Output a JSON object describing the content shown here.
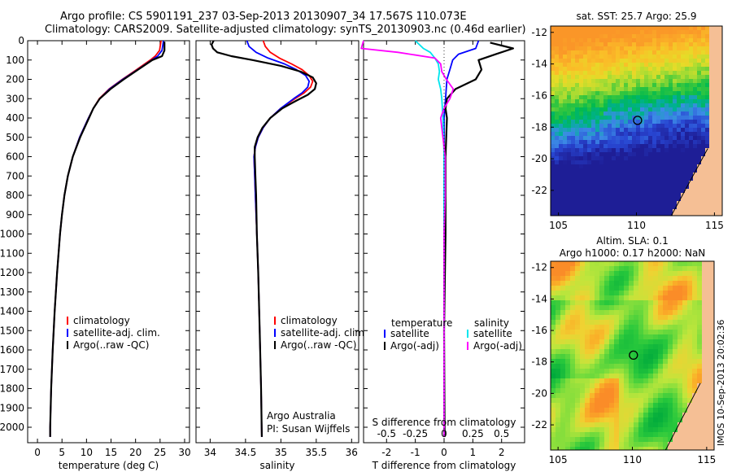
{
  "header": {
    "title_line1": "Argo profile: CS 5901191_237 03-Sep-2013 20130907_34 17.567S 110.073E",
    "title_line2": "Climatology: CARS2009. Satellite-adjusted climatology: synTS_20130903.nc (0.46d earlier)"
  },
  "stamp": "IMOS 10-Sep-2013 20:02:36",
  "chart_data": [
    {
      "id": "temperature",
      "type": "line",
      "xlabel": "temperature (deg C)",
      "ylabel": "",
      "xlim": [
        -2,
        31
      ],
      "ylim": [
        2080,
        0
      ],
      "xticks": [
        0,
        5,
        10,
        15,
        20,
        25,
        30
      ],
      "yticks": [
        0,
        100,
        200,
        300,
        400,
        500,
        600,
        700,
        800,
        900,
        1000,
        1100,
        1200,
        1300,
        1400,
        1500,
        1600,
        1700,
        1800,
        1900,
        2000
      ],
      "legend": [
        "climatology",
        "satellite-adj. clim.",
        "Argo(..raw -QC)"
      ],
      "series": [
        {
          "name": "climatology",
          "color": "#ff0000",
          "depth": [
            0,
            50,
            80,
            100,
            150,
            200,
            250,
            300,
            350,
            400,
            500,
            600,
            700,
            800,
            900,
            1000,
            1200,
            1400,
            1600,
            1800,
            2000,
            2050
          ],
          "values": [
            25.2,
            24.9,
            24.0,
            23.0,
            20.2,
            17.3,
            14.6,
            12.6,
            11.4,
            10.4,
            8.6,
            7.2,
            6.2,
            5.5,
            5.0,
            4.6,
            4.0,
            3.5,
            3.1,
            2.8,
            2.6,
            2.6
          ]
        },
        {
          "name": "satellite-adj. clim.",
          "color": "#0000ff",
          "depth": [
            0,
            50,
            80,
            100,
            150,
            200,
            250,
            300,
            350,
            400,
            500,
            600,
            700,
            800,
            900,
            1000,
            1200,
            1400,
            1600,
            1800,
            2000,
            2050
          ],
          "values": [
            25.7,
            25.4,
            24.5,
            23.3,
            20.4,
            17.4,
            14.7,
            12.7,
            11.4,
            10.4,
            8.6,
            7.2,
            6.2,
            5.5,
            5.0,
            4.6,
            4.0,
            3.5,
            3.1,
            2.8,
            2.6,
            2.6
          ]
        },
        {
          "name": "Argo(..raw -QC)",
          "color": "#000000",
          "depth": [
            5,
            50,
            80,
            100,
            150,
            200,
            250,
            300,
            350,
            400,
            500,
            600,
            700,
            800,
            900,
            1000,
            1200,
            1400,
            1600,
            1800,
            2000,
            2050
          ],
          "values": [
            25.9,
            25.9,
            25.4,
            23.4,
            20.5,
            17.6,
            14.9,
            12.7,
            11.4,
            10.5,
            8.7,
            7.2,
            6.2,
            5.5,
            5.0,
            4.6,
            4.0,
            3.5,
            3.1,
            2.8,
            2.6,
            2.6
          ]
        }
      ]
    },
    {
      "id": "salinity",
      "type": "line",
      "xlabel": "salinity",
      "xlim": [
        33.8,
        36.1
      ],
      "ylim": [
        2080,
        0
      ],
      "xticks": [
        34,
        34.5,
        35,
        35.5,
        36
      ],
      "legend": [
        "climatology",
        "satellite-adj. clim.",
        "Argo(..raw -QC)"
      ],
      "annotation": [
        "Argo Australia",
        "PI: Susan Wijffels"
      ],
      "series": [
        {
          "name": "climatology",
          "color": "#ff0000",
          "depth": [
            0,
            30,
            60,
            90,
            120,
            150,
            180,
            210,
            240,
            270,
            300,
            350,
            400,
            450,
            500,
            550,
            600,
            700,
            800,
            1000,
            1200,
            1500,
            1800,
            2050
          ],
          "values": [
            34.75,
            34.78,
            34.85,
            34.98,
            35.15,
            35.3,
            35.4,
            35.45,
            35.42,
            35.33,
            35.2,
            35.0,
            34.85,
            34.75,
            34.68,
            34.64,
            34.62,
            34.63,
            34.64,
            34.66,
            34.68,
            34.7,
            34.72,
            34.73
          ]
        },
        {
          "name": "satellite-adj. clim.",
          "color": "#0000ff",
          "depth": [
            0,
            30,
            60,
            90,
            120,
            150,
            180,
            210,
            240,
            270,
            300,
            350,
            400,
            450,
            500,
            550,
            600,
            700,
            800,
            1000,
            1200,
            1500,
            1800,
            2050
          ],
          "values": [
            34.52,
            34.55,
            34.65,
            34.82,
            35.05,
            35.22,
            35.35,
            35.4,
            35.38,
            35.3,
            35.18,
            35.0,
            34.85,
            34.75,
            34.68,
            34.64,
            34.62,
            34.63,
            34.64,
            34.66,
            34.68,
            34.7,
            34.72,
            34.73
          ]
        },
        {
          "name": "Argo(..raw -QC)",
          "color": "#000000",
          "depth": [
            0,
            20,
            40,
            60,
            80,
            100,
            130,
            160,
            190,
            220,
            250,
            280,
            310,
            350,
            400,
            450,
            500,
            550,
            600,
            700,
            800,
            1000,
            1200,
            1500,
            1800,
            2050
          ],
          "values": [
            34.05,
            34.02,
            34.04,
            34.1,
            34.3,
            34.6,
            35.0,
            35.28,
            35.45,
            35.5,
            35.48,
            35.38,
            35.22,
            35.02,
            34.85,
            34.74,
            34.67,
            34.63,
            34.63,
            34.64,
            34.65,
            34.66,
            34.68,
            34.7,
            34.72,
            34.73
          ]
        }
      ]
    },
    {
      "id": "differences",
      "type": "line",
      "xlabel": "T difference from climatology",
      "secondary_xlabel": "S difference from climatology",
      "xlim": [
        -2.8,
        2.8
      ],
      "ylim": [
        2080,
        0
      ],
      "xticks": [
        -2,
        -1,
        0,
        1,
        2
      ],
      "secondary_xticks": [
        -0.5,
        -0.25,
        0,
        0.25,
        0.5
      ],
      "legend_headers": [
        "temperature",
        "salinity"
      ],
      "legend": [
        "satellite",
        "Argo(-adj)",
        "satellite",
        "Argo(-adj)"
      ],
      "series": [
        {
          "name": "temperature satellite",
          "color": "#0000ff",
          "depth": [
            0,
            40,
            70,
            100,
            150,
            200,
            300,
            400,
            600,
            1000,
            1500,
            2050
          ],
          "values": [
            1.2,
            1.1,
            0.5,
            0.3,
            0.2,
            0.1,
            0.05,
            0.0,
            0.0,
            0.0,
            0.0,
            0.0
          ]
        },
        {
          "name": "temperature Argo(-adj)",
          "color": "#000000",
          "depth": [
            10,
            40,
            70,
            100,
            150,
            200,
            250,
            300,
            350,
            400,
            600,
            1000,
            1500,
            2050
          ],
          "values": [
            1.6,
            2.4,
            1.8,
            1.2,
            1.3,
            1.1,
            0.4,
            0.1,
            0.05,
            0.1,
            0.05,
            0.05,
            0.0,
            0.02
          ]
        },
        {
          "name": "salinity satellite",
          "color": "#00e5ee",
          "depth": [
            0,
            40,
            60,
            90,
            120,
            160,
            200,
            250,
            300,
            400,
            600,
            1000,
            1500,
            2050
          ],
          "values": [
            -0.25,
            -0.18,
            -0.12,
            -0.08,
            -0.05,
            -0.04,
            -0.05,
            -0.03,
            -0.02,
            -0.01,
            0.0,
            0.0,
            0.0,
            0.0
          ]
        },
        {
          "name": "salinity Argo(-adj)",
          "color": "#ff00ff",
          "depth": [
            0,
            40,
            60,
            90,
            120,
            160,
            200,
            250,
            300,
            350,
            400,
            600,
            800,
            1000,
            1500,
            2050
          ],
          "values": [
            -0.7,
            -0.72,
            -0.4,
            -0.08,
            -0.03,
            -0.02,
            0.02,
            0.08,
            0.05,
            0.0,
            -0.03,
            0.01,
            0.01,
            0.0,
            0.0,
            0.0
          ]
        }
      ]
    },
    {
      "id": "sst_map",
      "type": "heatmap",
      "title": "sat. SST: 25.7  Argo: 25.9",
      "xlim": [
        104.5,
        115.5
      ],
      "ylim": [
        -23.6,
        -11.6
      ],
      "xticks": [
        105,
        110,
        115
      ],
      "yticks": [
        -12,
        -14,
        -16,
        -18,
        -20,
        -22
      ],
      "marker": {
        "lon": 110.073,
        "lat": -17.567
      }
    },
    {
      "id": "sla_map",
      "type": "heatmap",
      "title": "Altim. SLA: 0.1",
      "subtitle": "Argo h1000: 0.17  h2000: NaN",
      "xlim": [
        104.5,
        115.5
      ],
      "ylim": [
        -23.6,
        -11.6
      ],
      "xticks": [
        105,
        110,
        115
      ],
      "yticks": [
        -12,
        -14,
        -16,
        -18,
        -20,
        -22
      ],
      "marker": {
        "lon": 110.073,
        "lat": -17.567
      }
    }
  ]
}
